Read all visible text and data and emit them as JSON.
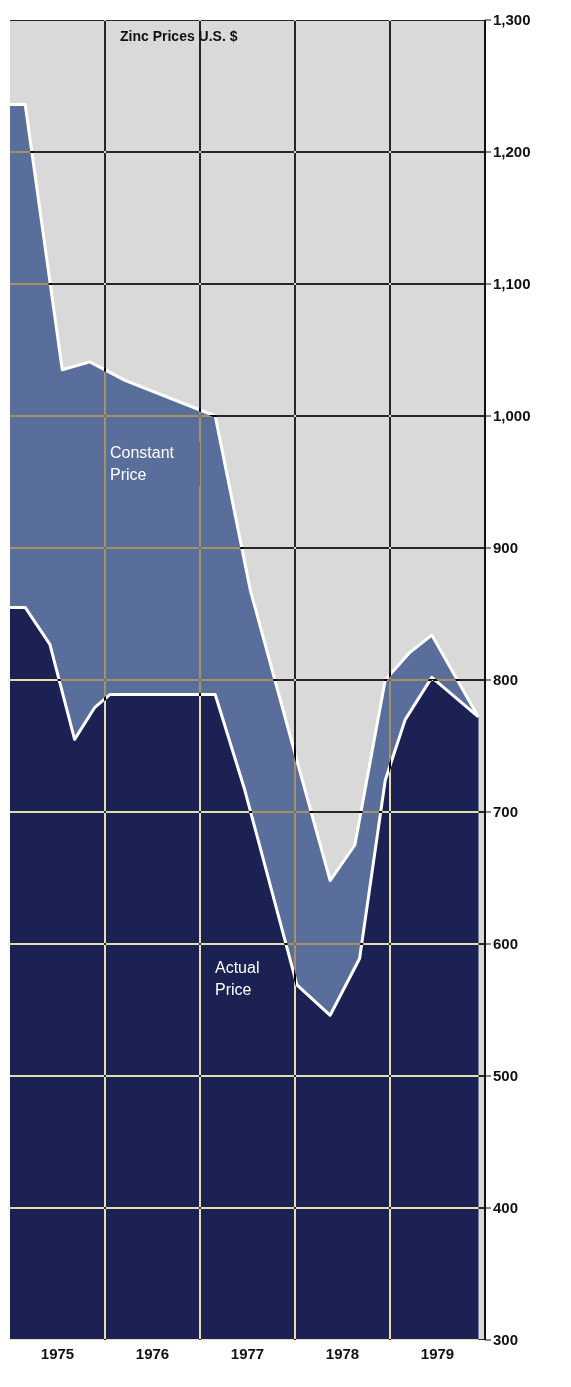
{
  "chart_data": {
    "type": "area",
    "title": "Zinc Prices U.S. $",
    "series": [
      {
        "name": "Constant Price",
        "color": "#5a6e9c",
        "x": [
          1975.0,
          1975.16,
          1975.55,
          1975.84,
          1976.21,
          1977.16,
          1977.53,
          1978.02,
          1978.37,
          1978.63,
          1978.95,
          1979.21,
          1979.44,
          1979.93
        ],
        "values": [
          1236,
          1236,
          1035,
          1041,
          1027,
          1000,
          868,
          739,
          648,
          675,
          800,
          821,
          834,
          772
        ]
      },
      {
        "name": "Actual Price",
        "color": "#1b2152",
        "x": [
          1975.0,
          1975.16,
          1975.42,
          1975.68,
          1975.89,
          1976.05,
          1977.16,
          1977.47,
          1978.02,
          1978.37,
          1978.68,
          1978.95,
          1979.16,
          1979.44,
          1979.93
        ],
        "values": [
          855,
          855,
          827,
          755,
          779,
          789,
          789,
          717,
          569,
          546,
          589,
          724,
          770,
          802,
          772
        ]
      }
    ],
    "xlim": [
      1975,
      1980
    ],
    "xticks": [
      {
        "value": 1975.5,
        "label": "1975"
      },
      {
        "value": 1976.5,
        "label": "1976"
      },
      {
        "value": 1977.5,
        "label": "1977"
      },
      {
        "value": 1978.5,
        "label": "1978"
      },
      {
        "value": 1979.5,
        "label": "1979"
      },
      {
        "value": 1976,
        "label": null
      },
      {
        "value": 1977,
        "label": null
      },
      {
        "value": 1978,
        "label": null
      },
      {
        "value": 1979,
        "label": null
      },
      {
        "value": 1980,
        "label": null
      }
    ],
    "ylim": [
      300,
      1300
    ],
    "yticks": [
      {
        "value": 300,
        "label": "300"
      },
      {
        "value": 400,
        "label": "400"
      },
      {
        "value": 500,
        "label": "500"
      },
      {
        "value": 600,
        "label": "600"
      },
      {
        "value": 700,
        "label": "700"
      },
      {
        "value": 800,
        "label": "800"
      },
      {
        "value": 900,
        "label": "900"
      },
      {
        "value": 1000,
        "label": "1,000"
      },
      {
        "value": 1100,
        "label": "1,100"
      },
      {
        "value": 1200,
        "label": "1,200"
      },
      {
        "value": 1300,
        "label": "1,300"
      }
    ],
    "grid": true
  }
}
